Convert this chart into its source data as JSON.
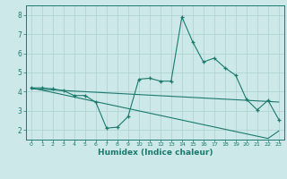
{
  "title": "",
  "xlabel": "Humidex (Indice chaleur)",
  "ylabel": "",
  "background_color": "#cce8e8",
  "line_color": "#1a7a6e",
  "x_values": [
    0,
    1,
    2,
    3,
    4,
    5,
    6,
    7,
    8,
    9,
    10,
    11,
    12,
    13,
    14,
    15,
    16,
    17,
    18,
    19,
    20,
    21,
    22,
    23
  ],
  "main_line": [
    4.2,
    4.2,
    4.15,
    4.05,
    3.8,
    3.8,
    3.45,
    2.1,
    2.15,
    2.7,
    4.65,
    4.7,
    4.55,
    4.55,
    7.9,
    6.6,
    5.55,
    5.75,
    5.25,
    4.85,
    3.6,
    3.05,
    3.55,
    2.55
  ],
  "trend_line1": [
    4.15,
    4.12,
    4.09,
    4.06,
    4.03,
    4.0,
    3.97,
    3.94,
    3.91,
    3.88,
    3.85,
    3.82,
    3.79,
    3.76,
    3.73,
    3.7,
    3.67,
    3.64,
    3.61,
    3.58,
    3.55,
    3.52,
    3.49,
    3.46
  ],
  "trend_line2": [
    4.2,
    4.08,
    3.96,
    3.84,
    3.72,
    3.6,
    3.48,
    3.36,
    3.24,
    3.12,
    3.0,
    2.88,
    2.76,
    2.64,
    2.52,
    2.4,
    2.28,
    2.16,
    2.04,
    1.92,
    1.8,
    1.68,
    1.56,
    1.95
  ],
  "ylim": [
    1.5,
    8.5
  ],
  "xlim": [
    -0.5,
    23.5
  ],
  "yticks": [
    2,
    3,
    4,
    5,
    6,
    7,
    8
  ],
  "xticks": [
    0,
    1,
    2,
    3,
    4,
    5,
    6,
    7,
    8,
    9,
    10,
    11,
    12,
    13,
    14,
    15,
    16,
    17,
    18,
    19,
    20,
    21,
    22,
    23
  ],
  "grid_color": "#aad0d0",
  "marker": "+"
}
